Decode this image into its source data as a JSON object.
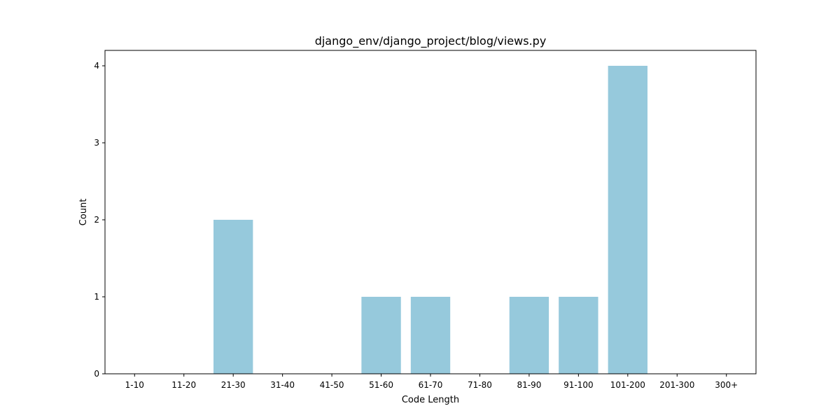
{
  "chart_data": {
    "type": "bar",
    "title": "django_env/django_project/blog/views.py",
    "xlabel": "Code Length",
    "ylabel": "Count",
    "categories": [
      "1-10",
      "11-20",
      "21-30",
      "31-40",
      "41-50",
      "51-60",
      "61-70",
      "71-80",
      "81-90",
      "91-100",
      "101-200",
      "201-300",
      "300+"
    ],
    "values": [
      0,
      0,
      2,
      0,
      0,
      1,
      1,
      0,
      1,
      1,
      4,
      0,
      0
    ],
    "yticks": [
      0,
      1,
      2,
      3,
      4
    ],
    "ylim": [
      0,
      4.2
    ],
    "bar_color": "#96c9dc",
    "grid": false,
    "legend": "none"
  }
}
